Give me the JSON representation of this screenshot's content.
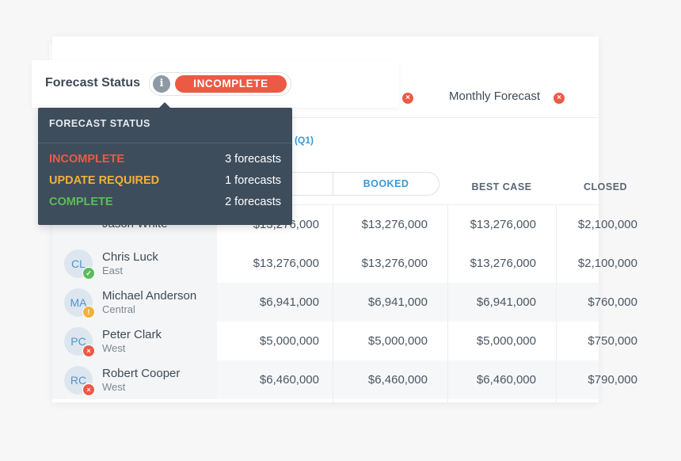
{
  "colors": {
    "incomplete": "#ec5a45",
    "update_required": "#f2b13b",
    "complete": "#5bbd5a",
    "accent": "#3a9ad4"
  },
  "status": {
    "title": "Forecast Status",
    "info_icon": "i",
    "badge": "INCOMPLETE"
  },
  "tooltip": {
    "title": "FORECAST STATUS",
    "rows": [
      {
        "label": "INCOMPLETE",
        "count": "3 forecasts"
      },
      {
        "label": "UPDATE REQUIRED",
        "count": "1 forecasts"
      },
      {
        "label": "COMPLETE",
        "count": "2 forecasts"
      }
    ]
  },
  "forecast_types": {
    "monthly_label": "Monthly Forecast",
    "x_glyph": "×"
  },
  "period": "(Q1)",
  "columns": [
    "BOOKED",
    "BEST CASE",
    "CLOSED"
  ],
  "rows": [
    {
      "name": "Jason White",
      "region": "",
      "initials": "",
      "status": "",
      "col1": "$13,276,000",
      "col2": "$13,276,000",
      "col3": "$13,276,000",
      "col4": "$2,100,000"
    },
    {
      "name": "Chris Luck",
      "region": "East",
      "initials": "CL",
      "status": "ok",
      "col1": "$13,276,000",
      "col2": "$13,276,000",
      "col3": "$13,276,000",
      "col4": "$2,100,000"
    },
    {
      "name": "Michael Anderson",
      "region": "Central",
      "initials": "MA",
      "status": "warn",
      "col1": "$6,941,000",
      "col2": "$6,941,000",
      "col3": "$6,941,000",
      "col4": "$760,000"
    },
    {
      "name": "Peter Clark",
      "region": "West",
      "initials": "PC",
      "status": "err",
      "col1": "$5,000,000",
      "col2": "$5,000,000",
      "col3": "$5,000,000",
      "col4": "$750,000"
    },
    {
      "name": "Robert Cooper",
      "region": "West",
      "initials": "RC",
      "status": "err",
      "col1": "$6,460,000",
      "col2": "$6,460,000",
      "col3": "$6,460,000",
      "col4": "$790,000"
    }
  ],
  "badge_glyphs": {
    "ok": "✓",
    "warn": "!",
    "err": "×"
  }
}
